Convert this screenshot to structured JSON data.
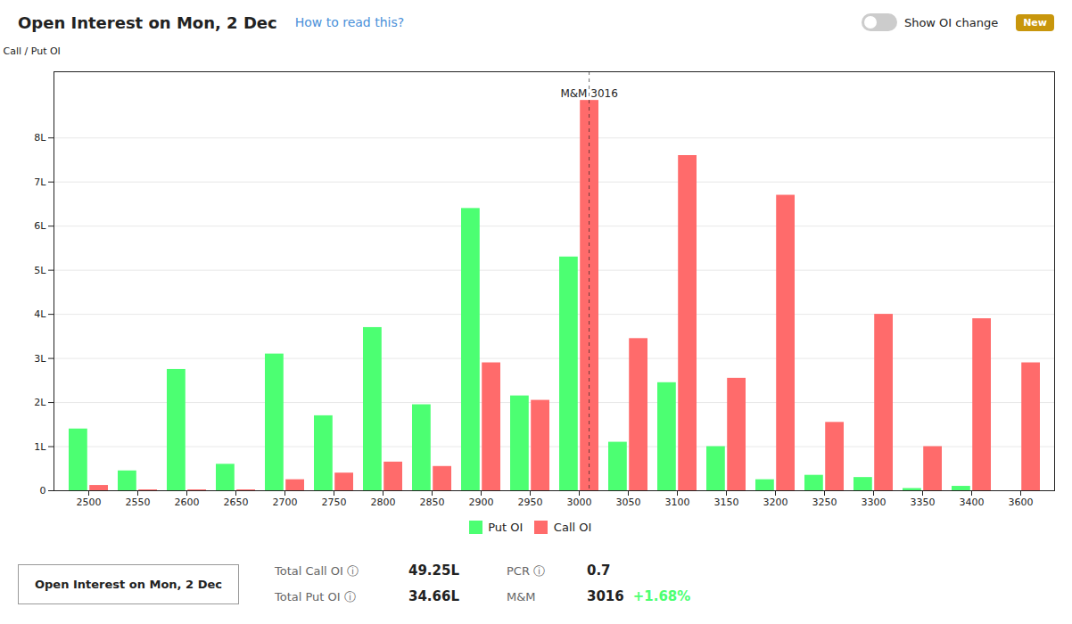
{
  "chart_data": {
    "type": "bar",
    "title": "Open Interest on Mon, 2 Dec",
    "subtitle": "How to read this?",
    "ylabel": "Call / Put OI",
    "categories": [
      "2500",
      "2550",
      "2600",
      "2650",
      "2700",
      "2750",
      "2800",
      "2850",
      "2900",
      "2950",
      "3000",
      "3050",
      "3100",
      "3150",
      "3200",
      "3250",
      "3300",
      "3350",
      "3400",
      "3600"
    ],
    "series": [
      {
        "name": "Put OI",
        "color": "#4cff72",
        "values": [
          1.4,
          0.45,
          2.75,
          0.6,
          3.1,
          1.7,
          3.7,
          1.95,
          6.4,
          2.15,
          5.3,
          1.1,
          2.45,
          1.0,
          0.25,
          0.35,
          0.3,
          0.05,
          0.1,
          0.0
        ]
      },
      {
        "name": "Call OI",
        "color": "#ff6b6b",
        "values": [
          0.12,
          0.02,
          0.02,
          0.02,
          0.25,
          0.4,
          0.65,
          0.55,
          2.9,
          2.05,
          8.85,
          3.45,
          7.6,
          2.55,
          6.7,
          1.55,
          4.0,
          1.0,
          3.9,
          2.9
        ]
      }
    ],
    "ylim": [
      0,
      9.5
    ],
    "yticks": [
      0,
      {
        "value": 1,
        "label": "1L"
      },
      {
        "value": 2,
        "label": "2L"
      },
      {
        "value": 3,
        "label": "3L"
      },
      {
        "value": 4,
        "label": "4L"
      },
      {
        "value": 5,
        "label": "5L"
      },
      {
        "value": 6,
        "label": "6L"
      },
      {
        "value": 7,
        "label": "7L"
      },
      {
        "value": 8,
        "label": "8L"
      }
    ],
    "grid": true,
    "legend": "bottom",
    "annotations": [
      {
        "text": "M&M 3016",
        "category": "3000",
        "y": 9.1
      },
      {
        "text": "Show OI change"
      },
      {
        "text": "New"
      },
      {
        "text": "Open Interest on Mon, 2 Dec"
      },
      {
        "text": "Total Call OI ⓘ"
      },
      {
        "text": "49.25L"
      },
      {
        "text": "PCR ⓘ"
      },
      {
        "text": "0.7"
      },
      {
        "text": "Total Put OI ⓘ"
      },
      {
        "text": "34.66L"
      },
      {
        "text": "M&M"
      },
      {
        "text": "3016"
      },
      {
        "text": "+1.68%",
        "color": "#4cff72"
      }
    ]
  }
}
